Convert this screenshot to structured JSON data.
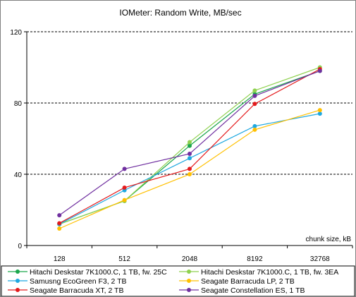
{
  "chart_data": {
    "type": "line",
    "title": "IOMeter: Random  Write, MB/sec",
    "xlabel": "chunk size, kB",
    "ylabel": "",
    "categories": [
      "128",
      "512",
      "2048",
      "8192",
      "32768"
    ],
    "ylim": [
      0,
      120
    ],
    "yticks": [
      "0",
      "40",
      "80",
      "120"
    ],
    "grid": "horizontal dashed",
    "legend_position": "bottom",
    "series": [
      {
        "name": "Hitachi Deskstar 7K1000.C, 1 TB, fw. 25C",
        "color": "#1aa64b",
        "values": [
          12,
          25,
          56,
          85,
          98
        ]
      },
      {
        "name": "Hitachi Deskstar 7K1000.C, 1 TB, fw. 3EA",
        "color": "#8fd14f",
        "values": [
          12,
          25,
          58,
          87,
          100
        ]
      },
      {
        "name": "Samusng EcoGreen F3, 2 TB",
        "color": "#1fa8e0",
        "values": [
          12,
          31,
          49,
          67,
          74
        ]
      },
      {
        "name": "Seagate Barracuda LP, 2 TB",
        "color": "#ffc000",
        "values": [
          9.5,
          25.5,
          40,
          65,
          76
        ]
      },
      {
        "name": "Seagate Barracuda XT, 2 TB",
        "color": "#e41a1c",
        "values": [
          12.5,
          32.5,
          43,
          79.5,
          99
        ]
      },
      {
        "name": "Seagate Constellation ES, 1 TB",
        "color": "#7030a0",
        "values": [
          17,
          43,
          51.5,
          84,
          98
        ]
      }
    ]
  }
}
